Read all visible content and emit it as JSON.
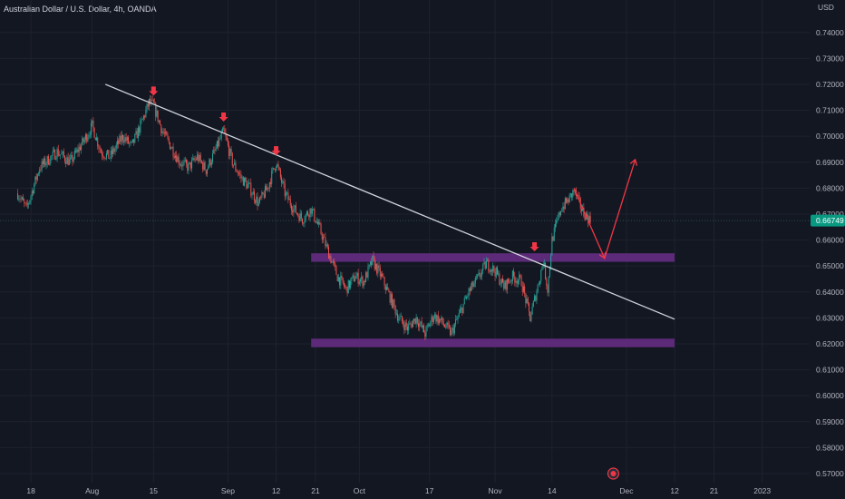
{
  "chart_data": {
    "type": "candlestick",
    "title": "Australian Dollar / U.S. Dollar, 4h, OANDA",
    "currency": "USD",
    "current_price": "0.66749",
    "y_ticks": [
      "0.74000",
      "0.73000",
      "0.72000",
      "0.71000",
      "0.70000",
      "0.69000",
      "0.68000",
      "0.67000",
      "0.66000",
      "0.65000",
      "0.64000",
      "0.63000",
      "0.62000",
      "0.61000",
      "0.60000",
      "0.59000",
      "0.58000",
      "0.57000"
    ],
    "y_tick_values": [
      0.74,
      0.73,
      0.72,
      0.71,
      0.7,
      0.69,
      0.68,
      0.67,
      0.66,
      0.65,
      0.64,
      0.63,
      0.62,
      0.61,
      0.6,
      0.59,
      0.58,
      0.57
    ],
    "ylim": [
      0.5665,
      0.7525
    ],
    "x_ticks": [
      {
        "label": "18",
        "date": "2022-07-18"
      },
      {
        "label": "Aug",
        "date": "2022-08-01"
      },
      {
        "label": "15",
        "date": "2022-08-15"
      },
      {
        "label": "Sep",
        "date": "2022-09-01"
      },
      {
        "label": "12",
        "date": "2022-09-12"
      },
      {
        "label": "21",
        "date": "2022-09-21"
      },
      {
        "label": "Oct",
        "date": "2022-10-01"
      },
      {
        "label": "17",
        "date": "2022-10-17"
      },
      {
        "label": "Nov",
        "date": "2022-11-01"
      },
      {
        "label": "14",
        "date": "2022-11-14"
      },
      {
        "label": "Dec",
        "date": "2022-12-01"
      },
      {
        "label": "12",
        "date": "2022-12-12"
      },
      {
        "label": "21",
        "date": "2022-12-21"
      },
      {
        "label": "2023",
        "date": "2023-01-01"
      }
    ],
    "price_path": [
      [
        "2022-07-15",
        0.678
      ],
      [
        "2022-07-17",
        0.672
      ],
      [
        "2022-07-20",
        0.688
      ],
      [
        "2022-07-24",
        0.694
      ],
      [
        "2022-07-27",
        0.69
      ],
      [
        "2022-07-30",
        0.698
      ],
      [
        "2022-08-01",
        0.704
      ],
      [
        "2022-08-03",
        0.694
      ],
      [
        "2022-08-05",
        0.692
      ],
      [
        "2022-08-08",
        0.7
      ],
      [
        "2022-08-10",
        0.696
      ],
      [
        "2022-08-12",
        0.704
      ],
      [
        "2022-08-14",
        0.713
      ],
      [
        "2022-08-15",
        0.712
      ],
      [
        "2022-08-17",
        0.702
      ],
      [
        "2022-08-19",
        0.696
      ],
      [
        "2022-08-21",
        0.69
      ],
      [
        "2022-08-23",
        0.688
      ],
      [
        "2022-08-25",
        0.692
      ],
      [
        "2022-08-27",
        0.687
      ],
      [
        "2022-08-29",
        0.694
      ],
      [
        "2022-08-31",
        0.702
      ],
      [
        "2022-09-02",
        0.69
      ],
      [
        "2022-09-04",
        0.684
      ],
      [
        "2022-09-06",
        0.68
      ],
      [
        "2022-09-08",
        0.674
      ],
      [
        "2022-09-10",
        0.68
      ],
      [
        "2022-09-12",
        0.69
      ],
      [
        "2022-09-14",
        0.678
      ],
      [
        "2022-09-16",
        0.672
      ],
      [
        "2022-09-18",
        0.668
      ],
      [
        "2022-09-20",
        0.672
      ],
      [
        "2022-09-22",
        0.664
      ],
      [
        "2022-09-24",
        0.655
      ],
      [
        "2022-09-26",
        0.646
      ],
      [
        "2022-09-28",
        0.641
      ],
      [
        "2022-09-30",
        0.646
      ],
      [
        "2022-10-02",
        0.644
      ],
      [
        "2022-10-04",
        0.652
      ],
      [
        "2022-10-06",
        0.646
      ],
      [
        "2022-10-08",
        0.638
      ],
      [
        "2022-10-10",
        0.63
      ],
      [
        "2022-10-12",
        0.626
      ],
      [
        "2022-10-14",
        0.63
      ],
      [
        "2022-10-16",
        0.624
      ],
      [
        "2022-10-18",
        0.631
      ],
      [
        "2022-10-20",
        0.628
      ],
      [
        "2022-10-22",
        0.624
      ],
      [
        "2022-10-24",
        0.632
      ],
      [
        "2022-10-26",
        0.64
      ],
      [
        "2022-10-28",
        0.645
      ],
      [
        "2022-10-30",
        0.651
      ],
      [
        "2022-11-01",
        0.648
      ],
      [
        "2022-11-03",
        0.642
      ],
      [
        "2022-11-05",
        0.646
      ],
      [
        "2022-11-07",
        0.644
      ],
      [
        "2022-11-09",
        0.63
      ],
      [
        "2022-11-11",
        0.644
      ],
      [
        "2022-11-12",
        0.652
      ],
      [
        "2022-11-13",
        0.641
      ],
      [
        "2022-11-14",
        0.66
      ],
      [
        "2022-11-16",
        0.672
      ],
      [
        "2022-11-18",
        0.676
      ],
      [
        "2022-11-19",
        0.679
      ],
      [
        "2022-11-21",
        0.671
      ],
      [
        "2022-11-23",
        0.667
      ]
    ],
    "annotations": {
      "trendline": {
        "start": [
          "2022-08-04",
          0.72
        ],
        "end": [
          "2022-12-12",
          0.6295
        ]
      },
      "zones": [
        {
          "x0": "2022-09-20",
          "x1": "2022-12-12",
          "y0": 0.6516,
          "y1": 0.6549,
          "color": "#5c2a78"
        },
        {
          "x0": "2022-09-20",
          "x1": "2022-12-12",
          "y0": 0.6187,
          "y1": 0.622,
          "color": "#5c2a78"
        }
      ],
      "arrows": [
        {
          "x": "2022-08-15",
          "y": 0.716
        },
        {
          "x": "2022-08-31",
          "y": 0.706
        },
        {
          "x": "2022-09-12",
          "y": 0.693
        },
        {
          "x": "2022-11-10",
          "y": 0.656
        }
      ],
      "projection": [
        [
          "2022-11-19",
          0.68
        ],
        [
          "2022-11-26",
          0.653
        ],
        [
          "2022-12-03",
          0.691
        ]
      ],
      "projection_color": "#f23645"
    }
  }
}
